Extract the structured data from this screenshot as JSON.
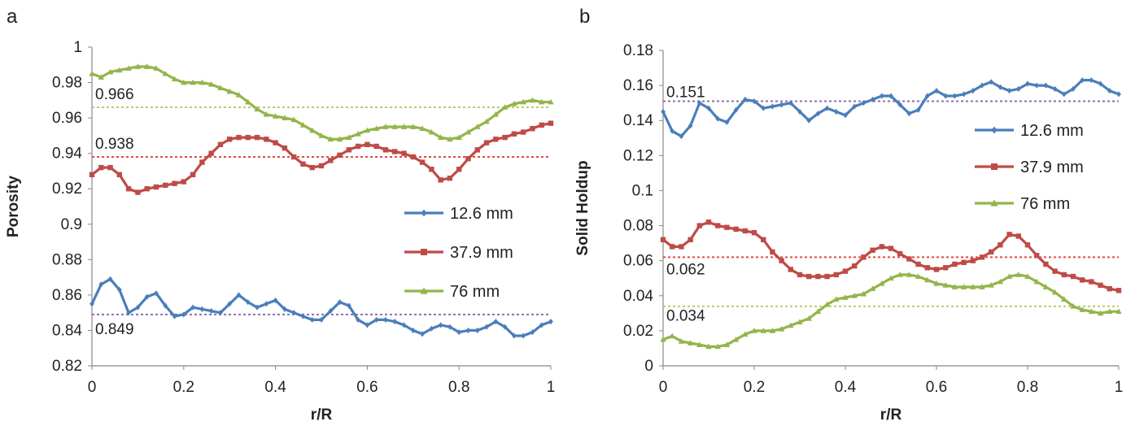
{
  "chart_data": [
    {
      "type": "line",
      "panel_label": "a",
      "xlabel": "r/R",
      "ylabel": "Porosity",
      "xlim": [
        0,
        1
      ],
      "ylim": [
        0.82,
        1
      ],
      "xticks": [
        "0",
        "0.2",
        "0.4",
        "0.6",
        "0.8",
        "1"
      ],
      "yticks": [
        "0.82",
        "0.84",
        "0.86",
        "0.88",
        "0.9",
        "0.92",
        "0.94",
        "0.96",
        "0.98",
        "1"
      ],
      "grid": false,
      "legend_position": "right-middle",
      "series": [
        {
          "name": "12.6 mm",
          "color": "#4a7ebb",
          "marker": "diamond",
          "x": [
            0,
            0.02,
            0.04,
            0.06,
            0.08,
            0.1,
            0.12,
            0.14,
            0.16,
            0.18,
            0.2,
            0.22,
            0.24,
            0.26,
            0.28,
            0.3,
            0.32,
            0.34,
            0.36,
            0.38,
            0.4,
            0.42,
            0.44,
            0.46,
            0.48,
            0.5,
            0.52,
            0.54,
            0.56,
            0.58,
            0.6,
            0.62,
            0.64,
            0.66,
            0.68,
            0.7,
            0.72,
            0.74,
            0.76,
            0.78,
            0.8,
            0.82,
            0.84,
            0.86,
            0.88,
            0.9,
            0.92,
            0.94,
            0.96,
            0.98,
            1
          ],
          "y": [
            0.855,
            0.866,
            0.869,
            0.863,
            0.85,
            0.853,
            0.859,
            0.861,
            0.854,
            0.848,
            0.849,
            0.853,
            0.852,
            0.851,
            0.85,
            0.855,
            0.86,
            0.856,
            0.853,
            0.855,
            0.857,
            0.852,
            0.85,
            0.848,
            0.846,
            0.846,
            0.851,
            0.856,
            0.854,
            0.846,
            0.843,
            0.846,
            0.846,
            0.845,
            0.843,
            0.84,
            0.838,
            0.841,
            0.843,
            0.842,
            0.839,
            0.84,
            0.84,
            0.842,
            0.845,
            0.842,
            0.837,
            0.837,
            0.839,
            0.843,
            0.845
          ]
        },
        {
          "name": "37.9 mm",
          "color": "#be4b48",
          "marker": "square",
          "x": [
            0,
            0.02,
            0.04,
            0.06,
            0.08,
            0.1,
            0.12,
            0.14,
            0.16,
            0.18,
            0.2,
            0.22,
            0.24,
            0.26,
            0.28,
            0.3,
            0.32,
            0.34,
            0.36,
            0.38,
            0.4,
            0.42,
            0.44,
            0.46,
            0.48,
            0.5,
            0.52,
            0.54,
            0.56,
            0.58,
            0.6,
            0.62,
            0.64,
            0.66,
            0.68,
            0.7,
            0.72,
            0.74,
            0.76,
            0.78,
            0.8,
            0.82,
            0.84,
            0.86,
            0.88,
            0.9,
            0.92,
            0.94,
            0.96,
            0.98,
            1
          ],
          "y": [
            0.928,
            0.932,
            0.932,
            0.928,
            0.92,
            0.918,
            0.92,
            0.921,
            0.922,
            0.923,
            0.924,
            0.928,
            0.935,
            0.94,
            0.945,
            0.948,
            0.949,
            0.949,
            0.949,
            0.948,
            0.946,
            0.943,
            0.938,
            0.934,
            0.932,
            0.933,
            0.936,
            0.939,
            0.942,
            0.944,
            0.945,
            0.944,
            0.942,
            0.941,
            0.94,
            0.938,
            0.935,
            0.931,
            0.925,
            0.926,
            0.931,
            0.937,
            0.942,
            0.946,
            0.948,
            0.949,
            0.951,
            0.952,
            0.954,
            0.956,
            0.957
          ]
        },
        {
          "name": "76 mm",
          "color": "#93b54a",
          "marker": "triangle",
          "x": [
            0,
            0.02,
            0.04,
            0.06,
            0.08,
            0.1,
            0.12,
            0.14,
            0.16,
            0.18,
            0.2,
            0.22,
            0.24,
            0.26,
            0.28,
            0.3,
            0.32,
            0.34,
            0.36,
            0.38,
            0.4,
            0.42,
            0.44,
            0.46,
            0.48,
            0.5,
            0.52,
            0.54,
            0.56,
            0.58,
            0.6,
            0.62,
            0.64,
            0.66,
            0.68,
            0.7,
            0.72,
            0.74,
            0.76,
            0.78,
            0.8,
            0.82,
            0.84,
            0.86,
            0.88,
            0.9,
            0.92,
            0.94,
            0.96,
            0.98,
            1
          ],
          "y": [
            0.985,
            0.983,
            0.986,
            0.987,
            0.988,
            0.989,
            0.989,
            0.988,
            0.985,
            0.982,
            0.98,
            0.98,
            0.98,
            0.979,
            0.977,
            0.975,
            0.973,
            0.969,
            0.965,
            0.962,
            0.961,
            0.96,
            0.959,
            0.956,
            0.953,
            0.95,
            0.948,
            0.948,
            0.949,
            0.951,
            0.953,
            0.954,
            0.955,
            0.955,
            0.955,
            0.955,
            0.954,
            0.952,
            0.949,
            0.948,
            0.949,
            0.952,
            0.955,
            0.958,
            0.962,
            0.966,
            0.968,
            0.969,
            0.97,
            0.969,
            0.969
          ]
        }
      ],
      "reference_lines": [
        {
          "value": 0.966,
          "label": "0.966",
          "color": "#b8cc68"
        },
        {
          "value": 0.938,
          "label": "0.938",
          "color": "#e34a40"
        },
        {
          "value": 0.849,
          "label": "0.849",
          "color": "#8e6cae"
        }
      ]
    },
    {
      "type": "line",
      "panel_label": "b",
      "xlabel": "r/R",
      "ylabel": "Solid Holdup",
      "xlim": [
        0,
        1
      ],
      "ylim": [
        0,
        0.18
      ],
      "xticks": [
        "0",
        "0.2",
        "0.4",
        "0.6",
        "0.8",
        "1"
      ],
      "yticks": [
        "0",
        "0.02",
        "0.04",
        "0.06",
        "0.08",
        "0.1",
        "0.12",
        "0.14",
        "0.16",
        "0.18"
      ],
      "grid": false,
      "legend_position": "right-top",
      "series": [
        {
          "name": "12.6 mm",
          "color": "#4a7ebb",
          "marker": "diamond",
          "x": [
            0,
            0.02,
            0.04,
            0.06,
            0.08,
            0.1,
            0.12,
            0.14,
            0.16,
            0.18,
            0.2,
            0.22,
            0.24,
            0.26,
            0.28,
            0.3,
            0.32,
            0.34,
            0.36,
            0.38,
            0.4,
            0.42,
            0.44,
            0.46,
            0.48,
            0.5,
            0.52,
            0.54,
            0.56,
            0.58,
            0.6,
            0.62,
            0.64,
            0.66,
            0.68,
            0.7,
            0.72,
            0.74,
            0.76,
            0.78,
            0.8,
            0.82,
            0.84,
            0.86,
            0.88,
            0.9,
            0.92,
            0.94,
            0.96,
            0.98,
            1
          ],
          "y": [
            0.145,
            0.134,
            0.131,
            0.137,
            0.15,
            0.147,
            0.141,
            0.139,
            0.146,
            0.152,
            0.151,
            0.147,
            0.148,
            0.149,
            0.15,
            0.145,
            0.14,
            0.144,
            0.147,
            0.145,
            0.143,
            0.148,
            0.15,
            0.152,
            0.154,
            0.154,
            0.149,
            0.144,
            0.146,
            0.154,
            0.157,
            0.154,
            0.154,
            0.155,
            0.157,
            0.16,
            0.162,
            0.159,
            0.157,
            0.158,
            0.161,
            0.16,
            0.16,
            0.158,
            0.155,
            0.158,
            0.163,
            0.163,
            0.161,
            0.157,
            0.155
          ]
        },
        {
          "name": "37.9 mm",
          "color": "#be4b48",
          "marker": "square",
          "x": [
            0,
            0.02,
            0.04,
            0.06,
            0.08,
            0.1,
            0.12,
            0.14,
            0.16,
            0.18,
            0.2,
            0.22,
            0.24,
            0.26,
            0.28,
            0.3,
            0.32,
            0.34,
            0.36,
            0.38,
            0.4,
            0.42,
            0.44,
            0.46,
            0.48,
            0.5,
            0.52,
            0.54,
            0.56,
            0.58,
            0.6,
            0.62,
            0.64,
            0.66,
            0.68,
            0.7,
            0.72,
            0.74,
            0.76,
            0.78,
            0.8,
            0.82,
            0.84,
            0.86,
            0.88,
            0.9,
            0.92,
            0.94,
            0.96,
            0.98,
            1
          ],
          "y": [
            0.072,
            0.068,
            0.068,
            0.072,
            0.08,
            0.082,
            0.08,
            0.079,
            0.078,
            0.077,
            0.076,
            0.072,
            0.065,
            0.06,
            0.055,
            0.052,
            0.051,
            0.051,
            0.051,
            0.052,
            0.054,
            0.057,
            0.062,
            0.066,
            0.068,
            0.067,
            0.064,
            0.061,
            0.058,
            0.056,
            0.055,
            0.056,
            0.058,
            0.059,
            0.06,
            0.062,
            0.065,
            0.069,
            0.075,
            0.074,
            0.069,
            0.063,
            0.058,
            0.054,
            0.052,
            0.051,
            0.049,
            0.048,
            0.046,
            0.044,
            0.043
          ]
        },
        {
          "name": "76 mm",
          "color": "#93b54a",
          "marker": "triangle",
          "x": [
            0,
            0.02,
            0.04,
            0.06,
            0.08,
            0.1,
            0.12,
            0.14,
            0.16,
            0.18,
            0.2,
            0.22,
            0.24,
            0.26,
            0.28,
            0.3,
            0.32,
            0.34,
            0.36,
            0.38,
            0.4,
            0.42,
            0.44,
            0.46,
            0.48,
            0.5,
            0.52,
            0.54,
            0.56,
            0.58,
            0.6,
            0.62,
            0.64,
            0.66,
            0.68,
            0.7,
            0.72,
            0.74,
            0.76,
            0.78,
            0.8,
            0.82,
            0.84,
            0.86,
            0.88,
            0.9,
            0.92,
            0.94,
            0.96,
            0.98,
            1
          ],
          "y": [
            0.015,
            0.017,
            0.014,
            0.013,
            0.012,
            0.011,
            0.011,
            0.012,
            0.015,
            0.018,
            0.02,
            0.02,
            0.02,
            0.021,
            0.023,
            0.025,
            0.027,
            0.031,
            0.035,
            0.038,
            0.039,
            0.04,
            0.041,
            0.044,
            0.047,
            0.05,
            0.052,
            0.052,
            0.051,
            0.049,
            0.047,
            0.046,
            0.045,
            0.045,
            0.045,
            0.045,
            0.046,
            0.048,
            0.051,
            0.052,
            0.051,
            0.048,
            0.045,
            0.042,
            0.038,
            0.034,
            0.032,
            0.031,
            0.03,
            0.031,
            0.031
          ]
        }
      ],
      "reference_lines": [
        {
          "value": 0.151,
          "label": "0.151",
          "color": "#8e6cae"
        },
        {
          "value": 0.062,
          "label": "0.062",
          "color": "#e34a40"
        },
        {
          "value": 0.034,
          "label": "0.034",
          "color": "#b8cc68"
        }
      ]
    }
  ]
}
